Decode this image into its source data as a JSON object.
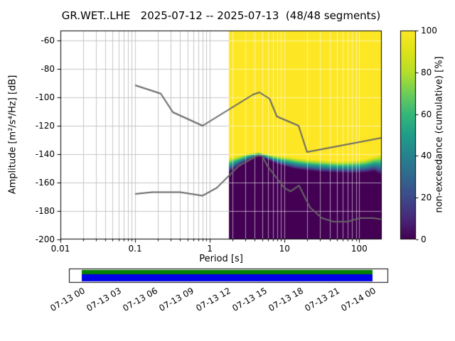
{
  "chart_data": {
    "type": "heatmap",
    "title": "GR.WET..LHE   2025-07-12 -- 2025-07-13  (48/48 segments)",
    "xlabel": "Period [s]",
    "ylabel": "Amplitude [m²/s⁴/Hz] [dB]",
    "x_scale": "log",
    "xlim": [
      0.01,
      200
    ],
    "ylim": [
      -200,
      -53
    ],
    "grid": true,
    "x_ticks": [
      {
        "v": 0.01,
        "label": "0.01"
      },
      {
        "v": 0.1,
        "label": "0.1"
      },
      {
        "v": 1,
        "label": "1"
      },
      {
        "v": 10,
        "label": "10"
      },
      {
        "v": 100,
        "label": "100"
      }
    ],
    "y_ticks": [
      {
        "v": -60,
        "label": "-60"
      },
      {
        "v": -80,
        "label": "-80"
      },
      {
        "v": -100,
        "label": "-100"
      },
      {
        "v": -120,
        "label": "-120"
      },
      {
        "v": -140,
        "label": "-140"
      },
      {
        "v": -160,
        "label": "-160"
      },
      {
        "v": -180,
        "label": "-180"
      },
      {
        "v": -200,
        "label": "-200"
      }
    ],
    "colorbar": {
      "label": "non-exceedance (cumulative) [%]",
      "lim": [
        0,
        100
      ],
      "colormap": "viridis",
      "ticks": [
        {
          "v": 0,
          "label": "0"
        },
        {
          "v": 20,
          "label": "20"
        },
        {
          "v": 40,
          "label": "40"
        },
        {
          "v": 60,
          "label": "60"
        },
        {
          "v": 80,
          "label": "80"
        },
        {
          "v": 100,
          "label": "100"
        }
      ]
    },
    "colors": {
      "background": "#ffffff",
      "grid": "#c6c6c6",
      "grid_over_data": "rgba(255,255,255,0.55)",
      "noise_model": "#666666",
      "spine": "#000000",
      "viridis_stops": [
        [
          0.0,
          "#440154"
        ],
        [
          0.1,
          "#482878"
        ],
        [
          0.2,
          "#3e4989"
        ],
        [
          0.3,
          "#31688e"
        ],
        [
          0.4,
          "#26828e"
        ],
        [
          0.5,
          "#1f9e89"
        ],
        [
          0.6,
          "#35b779"
        ],
        [
          0.7,
          "#6ece58"
        ],
        [
          0.8,
          "#b5de2b"
        ],
        [
          0.9,
          "#dde318"
        ],
        [
          1.0,
          "#fde725"
        ]
      ]
    },
    "psd_distribution": {
      "period_range": [
        1.8,
        200
      ],
      "envelope": [
        [
          1.8,
          -153,
          -142.5
        ],
        [
          2.4,
          -148.5,
          -141
        ],
        [
          3.2,
          -144.5,
          -139.5
        ],
        [
          4.5,
          -141.5,
          -138.5
        ],
        [
          6,
          -144,
          -140
        ],
        [
          8,
          -147,
          -141
        ],
        [
          10,
          -148.5,
          -141.5
        ],
        [
          14,
          -150.5,
          -142.5
        ],
        [
          20,
          -151.5,
          -143.5
        ],
        [
          30,
          -152.5,
          -144
        ],
        [
          50,
          -153,
          -145
        ],
        [
          80,
          -153.5,
          -144.5
        ],
        [
          120,
          -153,
          -143.5
        ],
        [
          160,
          -152,
          -141.5
        ],
        [
          200,
          -155,
          -139.5
        ]
      ]
    },
    "noise_models": {
      "nhnm": [
        [
          0.1,
          -91.5
        ],
        [
          0.22,
          -97.4
        ],
        [
          0.32,
          -110.5
        ],
        [
          0.8,
          -120
        ],
        [
          3.8,
          -98
        ],
        [
          4.6,
          -96.5
        ],
        [
          6.3,
          -101
        ],
        [
          7.9,
          -113.5
        ],
        [
          15.4,
          -120
        ],
        [
          20,
          -138.5
        ],
        [
          354.8,
          -126
        ]
      ],
      "nlnm": [
        [
          0.1,
          -168
        ],
        [
          0.17,
          -166.7
        ],
        [
          0.4,
          -166.7
        ],
        [
          0.8,
          -169.2
        ],
        [
          1.24,
          -163.7
        ],
        [
          2.4,
          -148.6
        ],
        [
          4.3,
          -141.1
        ],
        [
          5,
          -141.1
        ],
        [
          6,
          -149
        ],
        [
          10,
          -163.8
        ],
        [
          12,
          -166.2
        ],
        [
          15.6,
          -162.1
        ],
        [
          21.9,
          -177.5
        ],
        [
          31.6,
          -185
        ],
        [
          45,
          -187.5
        ],
        [
          70,
          -187.5
        ],
        [
          101,
          -185
        ],
        [
          154,
          -185
        ],
        [
          328,
          -187.5
        ]
      ]
    },
    "timeline": {
      "labels": [
        "07-13 00",
        "07-13 03",
        "07-13 06",
        "07-13 09",
        "07-13 12",
        "07-13 15",
        "07-13 18",
        "07-13 21",
        "07-14 00"
      ],
      "coverage_color": "#008000",
      "availability_color": "#0000e6"
    }
  }
}
